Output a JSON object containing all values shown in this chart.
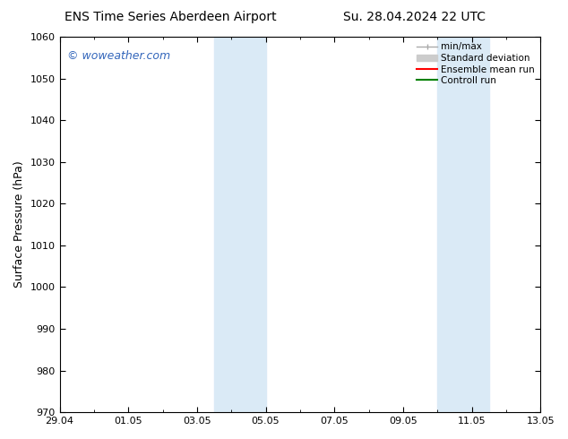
{
  "title_left": "ENS Time Series Aberdeen Airport",
  "title_right": "Su. 28.04.2024 22 UTC",
  "ylabel": "Surface Pressure (hPa)",
  "ylim": [
    970,
    1060
  ],
  "yticks": [
    970,
    980,
    990,
    1000,
    1010,
    1020,
    1030,
    1040,
    1050,
    1060
  ],
  "xtick_labels": [
    "29.04",
    "01.05",
    "03.05",
    "05.05",
    "07.05",
    "09.05",
    "11.05",
    "13.05"
  ],
  "xtick_positions": [
    0,
    2,
    4,
    6,
    8,
    10,
    12,
    14
  ],
  "xlim": [
    0,
    14
  ],
  "shaded_regions": [
    {
      "x_start": 4.5,
      "x_end": 6.0
    },
    {
      "x_start": 11.0,
      "x_end": 12.5
    }
  ],
  "shaded_color": "#daeaf6",
  "background_color": "#ffffff",
  "watermark_text": "© woweather.com",
  "watermark_color": "#3366bb",
  "minmax_color": "#aaaaaa",
  "stddev_color": "#cccccc",
  "mean_color": "red",
  "ctrl_color": "green",
  "title_fontsize": 10,
  "tick_fontsize": 8,
  "ylabel_fontsize": 9,
  "watermark_fontsize": 9,
  "legend_fontsize": 7.5
}
